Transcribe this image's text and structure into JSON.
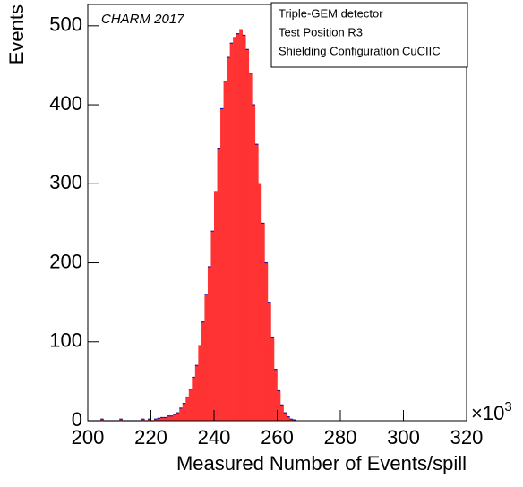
{
  "chart_data": {
    "type": "histogram",
    "annotation": "CHARM 2017",
    "info_box": [
      "Triple-GEM detector",
      "Test Position R3",
      "Shielding Configuration CuCIIC"
    ],
    "x_label": "Measured Number of Events/spill",
    "y_label": "Events",
    "x_multiplier_base": "×10",
    "x_multiplier_exponent": "3",
    "fill_color": "#ff3333",
    "line_color": "#1a1aa8",
    "bins": [
      200,
      201,
      202,
      203,
      204,
      205,
      206,
      207,
      208,
      209,
      210,
      211,
      212,
      213,
      214,
      215,
      216,
      217,
      218,
      219,
      220,
      221,
      222,
      223,
      224,
      225,
      226,
      227,
      228,
      229,
      230,
      231,
      232,
      233,
      234,
      235,
      236,
      237,
      238,
      239,
      240,
      241,
      242,
      243,
      244,
      245,
      246,
      247,
      248,
      249,
      250,
      251,
      252,
      253,
      254,
      255,
      256,
      257,
      258,
      259,
      260,
      261,
      262,
      263,
      264,
      265,
      266
    ],
    "values": [
      0,
      0,
      0,
      0,
      2,
      0,
      0,
      0,
      0,
      0,
      2,
      0,
      0,
      0,
      0,
      0,
      0,
      2,
      0,
      2,
      0,
      2,
      3,
      4,
      4,
      6,
      6,
      8,
      10,
      16,
      22,
      30,
      40,
      55,
      70,
      95,
      125,
      160,
      195,
      240,
      290,
      345,
      395,
      430,
      460,
      478,
      485,
      490,
      495,
      488,
      470,
      440,
      400,
      350,
      300,
      250,
      200,
      150,
      105,
      65,
      38,
      20,
      10,
      5,
      2,
      1
    ],
    "xlim": [
      200,
      320
    ],
    "xticks": [
      200,
      220,
      240,
      260,
      280,
      300,
      320
    ],
    "ylim": [
      0,
      527
    ],
    "yticks": [
      0,
      100,
      200,
      300,
      400,
      500
    ]
  }
}
